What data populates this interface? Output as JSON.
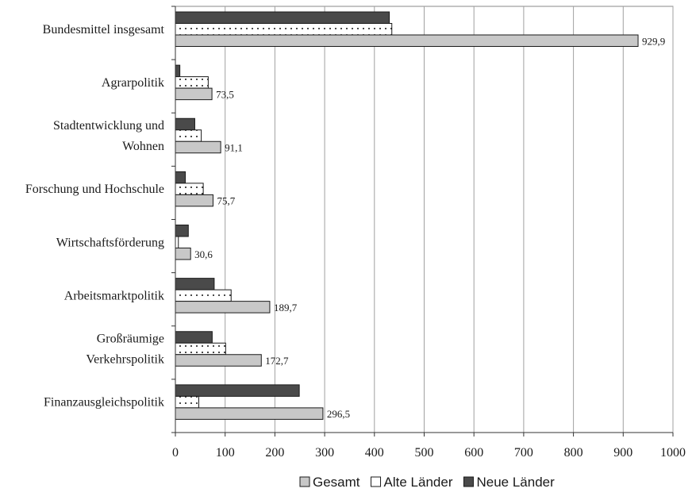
{
  "chart_data": {
    "type": "bar",
    "orientation": "horizontal",
    "categories": [
      [
        "Bundesmittel insgesamt"
      ],
      [
        "Agrarpolitik"
      ],
      [
        "Stadtentwicklung und",
        "Wohnen"
      ],
      [
        "Forschung und Hochschule"
      ],
      [
        "Wirtschaftsförderung"
      ],
      [
        "Arbeitsmarktpolitik"
      ],
      [
        "Großräumige",
        "Verkehrspolitik"
      ],
      [
        "Finanzausgleichspolitik"
      ]
    ],
    "series": [
      {
        "name": "Neue Länder",
        "color": "#4a4a4a",
        "pattern": "solid",
        "values": [
          430,
          9,
          39,
          20,
          26,
          78,
          74,
          249
        ]
      },
      {
        "name": "Alte Länder",
        "color": "#ffffff",
        "pattern": "dots",
        "values": [
          435,
          66,
          52,
          56,
          6,
          112,
          101,
          47
        ]
      },
      {
        "name": "Gesamt",
        "color": "#c8c8c8",
        "pattern": "solid",
        "values": [
          929.9,
          73.5,
          91.1,
          75.7,
          30.6,
          189.7,
          172.7,
          296.5
        ]
      }
    ],
    "data_labels": [
      "929,9",
      "73,5",
      "91,1",
      "75,7",
      "30,6",
      "189,7",
      "172,7",
      "296,5"
    ],
    "xticks": [
      "0",
      "100",
      "200",
      "300",
      "400",
      "500",
      "600",
      "700",
      "800",
      "900",
      "1000"
    ],
    "xlim": [
      0,
      1000
    ],
    "grid": "vertical",
    "legend": {
      "position": "bottom",
      "order": [
        "Gesamt",
        "Alte Länder",
        "Neue Länder"
      ]
    }
  }
}
